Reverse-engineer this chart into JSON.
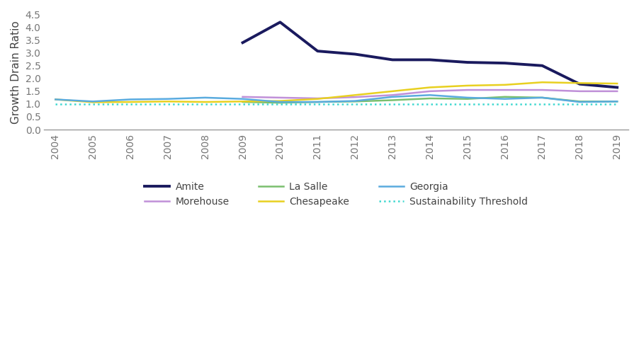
{
  "years": [
    2004,
    2005,
    2006,
    2007,
    2008,
    2009,
    2010,
    2011,
    2012,
    2013,
    2014,
    2015,
    2016,
    2017,
    2018,
    2019
  ],
  "series": {
    "Amite": [
      null,
      null,
      null,
      null,
      null,
      3.4,
      4.2,
      3.07,
      2.95,
      2.73,
      2.73,
      2.63,
      2.6,
      2.5,
      1.78,
      1.65
    ],
    "Morehouse": [
      null,
      null,
      null,
      null,
      null,
      1.28,
      1.25,
      1.22,
      1.27,
      1.35,
      1.5,
      1.55,
      1.55,
      1.55,
      1.5,
      1.5
    ],
    "La Salle": [
      null,
      null,
      null,
      null,
      null,
      1.08,
      1.05,
      1.08,
      1.1,
      1.15,
      1.22,
      1.2,
      1.28,
      1.25,
      1.1,
      1.1
    ],
    "Chesapeake": [
      1.18,
      1.07,
      1.08,
      1.1,
      1.08,
      1.1,
      1.12,
      1.2,
      1.35,
      1.5,
      1.65,
      1.72,
      1.75,
      1.85,
      1.82,
      1.8
    ],
    "Georgia": [
      1.18,
      1.1,
      1.18,
      1.2,
      1.25,
      1.2,
      1.08,
      1.08,
      1.12,
      1.28,
      1.35,
      1.25,
      1.2,
      1.25,
      1.08,
      1.1
    ],
    "Sustainability Threshold": [
      1.0,
      1.0,
      1.0,
      1.0,
      1.0,
      1.0,
      1.0,
      1.0,
      1.0,
      1.0,
      1.0,
      1.0,
      1.0,
      1.0,
      1.0,
      1.0
    ]
  },
  "colors": {
    "Amite": "#1a1a5e",
    "Morehouse": "#c090d8",
    "La Salle": "#7abf6e",
    "Chesapeake": "#e8d020",
    "Georgia": "#5aabde",
    "Sustainability Threshold": "#40d8d0"
  },
  "line_widths": {
    "Amite": 2.8,
    "Morehouse": 1.8,
    "La Salle": 1.8,
    "Chesapeake": 1.8,
    "Georgia": 1.8,
    "Sustainability Threshold": 1.8
  },
  "legend_order": [
    "Amite",
    "Morehouse",
    "La Salle",
    "Chesapeake",
    "Georgia",
    "Sustainability Threshold"
  ],
  "ylabel": "Growth Drain Ratio",
  "ylim": [
    0.0,
    4.5
  ],
  "yticks": [
    0.0,
    0.5,
    1.0,
    1.5,
    2.0,
    2.5,
    3.0,
    3.5,
    4.0,
    4.5
  ],
  "background_color": "#ffffff",
  "spine_color": "#333333",
  "tick_color": "#777777"
}
